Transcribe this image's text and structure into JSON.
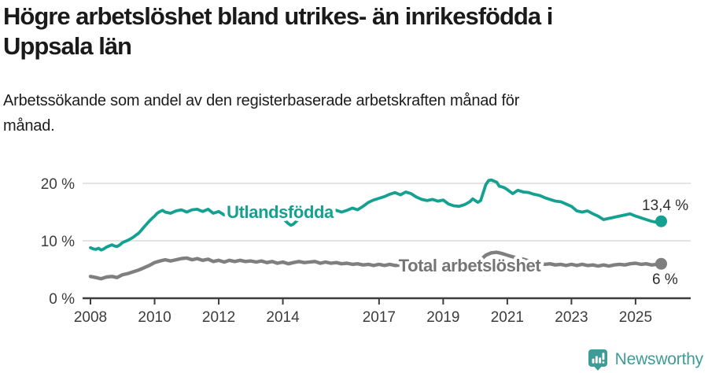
{
  "header": {
    "title_lines": [
      "Högre arbetslöshet bland utrikes- än inrikesfödda i",
      "Uppsala län"
    ],
    "subtitle_lines": [
      "Arbetssökande som andel av den registerbaserade arbetskraften månad för",
      "månad."
    ]
  },
  "footer": {
    "brand": "Newsworthy",
    "brand_color": "#3E9B95",
    "logo_icon": "newsworthy-speech-bubble-barchart-icon"
  },
  "colors": {
    "grid": "#dbdbdb",
    "axis_dark": "#3d3d3d",
    "axis_text": "#3c3c3c"
  },
  "chart_data": {
    "type": "line",
    "unit": "%",
    "grid": "horizontal",
    "legend_position": "inline-labels",
    "xlim": [
      2007.75,
      2026.6
    ],
    "ylim": [
      0,
      22
    ],
    "x_ticks": [
      2008,
      2010,
      2012,
      2014,
      2017,
      2019,
      2021,
      2023,
      2025
    ],
    "y_ticks": [
      {
        "value": 0,
        "label": "0 %"
      },
      {
        "value": 10,
        "label": "10 %"
      },
      {
        "value": 20,
        "label": "20 %"
      }
    ],
    "series": [
      {
        "name": "Utlandsfödda",
        "color": "#14A191",
        "end_label": "13,4 %",
        "end_value": 13.4,
        "points": [
          [
            2008.0,
            8.8
          ],
          [
            2008.08,
            8.6
          ],
          [
            2008.17,
            8.5
          ],
          [
            2008.25,
            8.7
          ],
          [
            2008.33,
            8.4
          ],
          [
            2008.42,
            8.6
          ],
          [
            2008.5,
            8.9
          ],
          [
            2008.58,
            9.1
          ],
          [
            2008.67,
            9.3
          ],
          [
            2008.75,
            9.1
          ],
          [
            2008.83,
            9.0
          ],
          [
            2008.92,
            9.3
          ],
          [
            2009.0,
            9.7
          ],
          [
            2009.17,
            10.1
          ],
          [
            2009.33,
            10.6
          ],
          [
            2009.42,
            11.0
          ],
          [
            2009.5,
            11.3
          ],
          [
            2009.58,
            11.8
          ],
          [
            2009.67,
            12.4
          ],
          [
            2009.83,
            13.4
          ],
          [
            2009.92,
            13.9
          ],
          [
            2010.0,
            14.3
          ],
          [
            2010.08,
            14.8
          ],
          [
            2010.17,
            15.1
          ],
          [
            2010.25,
            15.3
          ],
          [
            2010.33,
            15.0
          ],
          [
            2010.5,
            14.8
          ],
          [
            2010.67,
            15.2
          ],
          [
            2010.83,
            15.4
          ],
          [
            2010.92,
            15.2
          ],
          [
            2011.0,
            15.0
          ],
          [
            2011.17,
            15.4
          ],
          [
            2011.33,
            15.5
          ],
          [
            2011.5,
            15.1
          ],
          [
            2011.67,
            15.5
          ],
          [
            2011.83,
            14.8
          ],
          [
            2012.0,
            15.1
          ],
          [
            2012.17,
            14.5
          ],
          [
            2012.33,
            15.0
          ],
          [
            2012.5,
            14.7
          ],
          [
            2012.67,
            15.0
          ],
          [
            2012.83,
            14.7
          ],
          [
            2013.0,
            14.9
          ],
          [
            2013.17,
            14.6
          ],
          [
            2013.33,
            14.9
          ],
          [
            2013.5,
            14.5
          ],
          [
            2013.67,
            14.8
          ],
          [
            2013.83,
            14.3
          ],
          [
            2014.0,
            13.9
          ],
          [
            2014.17,
            13.0
          ],
          [
            2014.25,
            12.7
          ],
          [
            2014.33,
            12.9
          ],
          [
            2014.5,
            13.8
          ],
          [
            2014.67,
            14.6
          ],
          [
            2014.83,
            14.9
          ],
          [
            2015.0,
            15.1
          ],
          [
            2015.17,
            14.8
          ],
          [
            2015.33,
            15.1
          ],
          [
            2015.5,
            14.9
          ],
          [
            2015.67,
            15.3
          ],
          [
            2015.83,
            15.0
          ],
          [
            2016.0,
            15.3
          ],
          [
            2016.17,
            15.7
          ],
          [
            2016.33,
            15.4
          ],
          [
            2016.5,
            16.0
          ],
          [
            2016.67,
            16.7
          ],
          [
            2016.83,
            17.1
          ],
          [
            2017.0,
            17.4
          ],
          [
            2017.17,
            17.7
          ],
          [
            2017.33,
            18.1
          ],
          [
            2017.5,
            18.4
          ],
          [
            2017.67,
            18.0
          ],
          [
            2017.83,
            18.5
          ],
          [
            2018.0,
            18.2
          ],
          [
            2018.17,
            17.6
          ],
          [
            2018.33,
            17.2
          ],
          [
            2018.5,
            17.0
          ],
          [
            2018.67,
            17.2
          ],
          [
            2018.83,
            16.9
          ],
          [
            2019.0,
            17.1
          ],
          [
            2019.17,
            16.4
          ],
          [
            2019.33,
            16.1
          ],
          [
            2019.5,
            16.0
          ],
          [
            2019.67,
            16.3
          ],
          [
            2019.83,
            16.8
          ],
          [
            2019.92,
            17.3
          ],
          [
            2020.08,
            16.7
          ],
          [
            2020.17,
            17.0
          ],
          [
            2020.25,
            18.4
          ],
          [
            2020.33,
            19.8
          ],
          [
            2020.42,
            20.5
          ],
          [
            2020.5,
            20.6
          ],
          [
            2020.58,
            20.4
          ],
          [
            2020.67,
            20.2
          ],
          [
            2020.75,
            19.5
          ],
          [
            2020.83,
            19.4
          ],
          [
            2020.92,
            19.2
          ],
          [
            2021.0,
            18.9
          ],
          [
            2021.17,
            18.2
          ],
          [
            2021.33,
            18.8
          ],
          [
            2021.5,
            18.5
          ],
          [
            2021.67,
            18.4
          ],
          [
            2021.83,
            18.1
          ],
          [
            2022.0,
            17.9
          ],
          [
            2022.17,
            17.5
          ],
          [
            2022.33,
            17.2
          ],
          [
            2022.5,
            16.9
          ],
          [
            2022.67,
            16.8
          ],
          [
            2022.83,
            16.4
          ],
          [
            2023.0,
            16.0
          ],
          [
            2023.17,
            15.2
          ],
          [
            2023.33,
            15.0
          ],
          [
            2023.5,
            15.2
          ],
          [
            2023.67,
            14.7
          ],
          [
            2023.83,
            14.3
          ],
          [
            2024.0,
            13.7
          ],
          [
            2024.17,
            13.9
          ],
          [
            2024.33,
            14.1
          ],
          [
            2024.5,
            14.3
          ],
          [
            2024.67,
            14.5
          ],
          [
            2024.83,
            14.7
          ],
          [
            2025.0,
            14.3
          ],
          [
            2025.17,
            14.0
          ],
          [
            2025.33,
            13.7
          ],
          [
            2025.5,
            13.4
          ],
          [
            2025.67,
            13.2
          ],
          [
            2025.8,
            13.4
          ]
        ]
      },
      {
        "name": "Total arbetslöshet",
        "color": "#7F7F7F",
        "label_color": "#757575",
        "end_label": "6 %",
        "end_value": 6.0,
        "points": [
          [
            2008.0,
            3.8
          ],
          [
            2008.17,
            3.6
          ],
          [
            2008.33,
            3.4
          ],
          [
            2008.5,
            3.7
          ],
          [
            2008.67,
            3.8
          ],
          [
            2008.83,
            3.6
          ],
          [
            2009.0,
            4.1
          ],
          [
            2009.17,
            4.3
          ],
          [
            2009.33,
            4.6
          ],
          [
            2009.5,
            4.9
          ],
          [
            2009.67,
            5.3
          ],
          [
            2009.83,
            5.7
          ],
          [
            2010.0,
            6.2
          ],
          [
            2010.17,
            6.5
          ],
          [
            2010.33,
            6.7
          ],
          [
            2010.5,
            6.5
          ],
          [
            2010.67,
            6.7
          ],
          [
            2010.83,
            6.9
          ],
          [
            2011.0,
            7.0
          ],
          [
            2011.17,
            6.7
          ],
          [
            2011.33,
            6.9
          ],
          [
            2011.5,
            6.6
          ],
          [
            2011.67,
            6.8
          ],
          [
            2011.83,
            6.4
          ],
          [
            2012.0,
            6.6
          ],
          [
            2012.17,
            6.3
          ],
          [
            2012.33,
            6.6
          ],
          [
            2012.5,
            6.4
          ],
          [
            2012.67,
            6.6
          ],
          [
            2012.83,
            6.4
          ],
          [
            2013.0,
            6.5
          ],
          [
            2013.17,
            6.3
          ],
          [
            2013.33,
            6.5
          ],
          [
            2013.5,
            6.2
          ],
          [
            2013.67,
            6.4
          ],
          [
            2013.83,
            6.1
          ],
          [
            2014.0,
            6.3
          ],
          [
            2014.17,
            6.0
          ],
          [
            2014.33,
            6.2
          ],
          [
            2014.5,
            6.4
          ],
          [
            2014.67,
            6.2
          ],
          [
            2014.83,
            6.3
          ],
          [
            2015.0,
            6.4
          ],
          [
            2015.17,
            6.1
          ],
          [
            2015.33,
            6.3
          ],
          [
            2015.5,
            6.1
          ],
          [
            2015.67,
            6.2
          ],
          [
            2015.83,
            6.0
          ],
          [
            2016.0,
            6.1
          ],
          [
            2016.17,
            5.9
          ],
          [
            2016.33,
            6.0
          ],
          [
            2016.5,
            5.8
          ],
          [
            2016.67,
            5.9
          ],
          [
            2016.83,
            5.7
          ],
          [
            2017.0,
            5.9
          ],
          [
            2017.17,
            5.7
          ],
          [
            2017.33,
            5.9
          ],
          [
            2017.5,
            5.7
          ],
          [
            2017.67,
            5.8
          ],
          [
            2017.83,
            5.6
          ],
          [
            2018.0,
            5.7
          ],
          [
            2018.17,
            5.5
          ],
          [
            2018.33,
            5.7
          ],
          [
            2018.5,
            5.5
          ],
          [
            2018.67,
            5.6
          ],
          [
            2018.83,
            5.5
          ],
          [
            2019.0,
            5.7
          ],
          [
            2019.17,
            5.5
          ],
          [
            2019.33,
            5.7
          ],
          [
            2019.5,
            5.6
          ],
          [
            2019.67,
            5.8
          ],
          [
            2019.83,
            6.0
          ],
          [
            2020.0,
            6.2
          ],
          [
            2020.17,
            6.7
          ],
          [
            2020.33,
            7.5
          ],
          [
            2020.5,
            7.9
          ],
          [
            2020.67,
            8.0
          ],
          [
            2020.83,
            7.8
          ],
          [
            2021.0,
            7.5
          ],
          [
            2021.17,
            7.2
          ],
          [
            2021.33,
            7.0
          ],
          [
            2021.5,
            6.8
          ],
          [
            2021.67,
            6.5
          ],
          [
            2021.83,
            6.2
          ],
          [
            2022.0,
            6.1
          ],
          [
            2022.17,
            5.9
          ],
          [
            2022.33,
            6.0
          ],
          [
            2022.5,
            5.8
          ],
          [
            2022.67,
            5.9
          ],
          [
            2022.83,
            5.7
          ],
          [
            2023.0,
            5.9
          ],
          [
            2023.17,
            5.7
          ],
          [
            2023.33,
            5.9
          ],
          [
            2023.5,
            5.7
          ],
          [
            2023.67,
            5.8
          ],
          [
            2023.83,
            5.6
          ],
          [
            2024.0,
            5.8
          ],
          [
            2024.17,
            5.6
          ],
          [
            2024.33,
            5.8
          ],
          [
            2024.5,
            5.9
          ],
          [
            2024.67,
            5.8
          ],
          [
            2024.83,
            6.0
          ],
          [
            2025.0,
            6.1
          ],
          [
            2025.17,
            5.9
          ],
          [
            2025.33,
            6.0
          ],
          [
            2025.5,
            5.8
          ],
          [
            2025.67,
            5.9
          ],
          [
            2025.8,
            6.0
          ]
        ]
      }
    ]
  }
}
